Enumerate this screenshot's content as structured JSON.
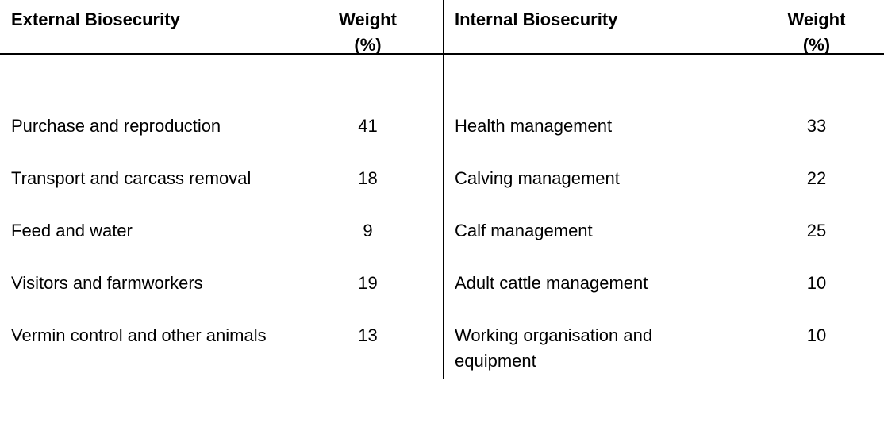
{
  "table": {
    "left": {
      "header": {
        "category": "External Biosecurity",
        "weight": "Weight (%)"
      },
      "rows": [
        {
          "label": "Purchase and reproduction",
          "weight": 41
        },
        {
          "label": "Transport and carcass removal",
          "weight": 18
        },
        {
          "label": "Feed and water",
          "weight": 9
        },
        {
          "label": "Visitors and farmworkers",
          "weight": 19
        },
        {
          "label": "Vermin control and other animals",
          "weight": 13
        }
      ]
    },
    "right": {
      "header": {
        "category": "Internal Biosecurity",
        "weight": "Weight (%)"
      },
      "rows": [
        {
          "label": "Health management",
          "weight": 33
        },
        {
          "label": "Calving management",
          "weight": 22
        },
        {
          "label": "Calf management",
          "weight": 25
        },
        {
          "label": "Adult cattle management",
          "weight": 10
        },
        {
          "label": "Working organisation and equipment",
          "weight": 10
        }
      ]
    }
  },
  "colors": {
    "background": "#ffffff",
    "text": "#000000",
    "rule": "#000000"
  }
}
